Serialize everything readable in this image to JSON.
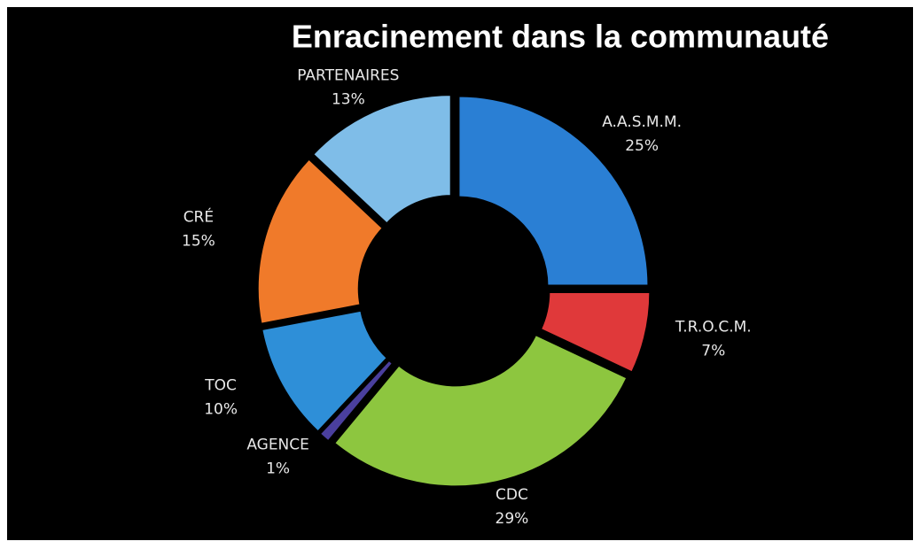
{
  "chart_data": {
    "type": "pie",
    "title": "Enracinement dans la communauté",
    "categories": [
      "A.A.S.M.M.",
      "T.R.O.C.M.",
      "CDC",
      "AGENCE",
      "TOC",
      "CRÉ",
      "PARTENAIRES"
    ],
    "values": [
      25,
      7,
      29,
      1,
      10,
      15,
      13
    ],
    "value_labels": [
      "25%",
      "7%",
      "29%",
      "1%",
      "10%",
      "15%",
      "13%"
    ],
    "colors": [
      "#2a7fd4",
      "#e0393a",
      "#8dc63f",
      "#4a3f9e",
      "#2e8fd8",
      "#f07a2a",
      "#7fbde8"
    ],
    "donut": true
  }
}
